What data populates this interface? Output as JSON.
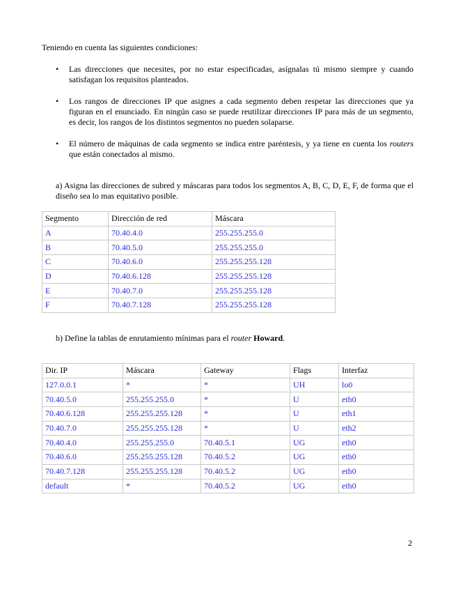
{
  "intro": "Teniendo en cuenta las siguientes condiciones:",
  "bullets": [
    "Las direcciones que necesites, por no estar especificadas, asígnalas tú mismo siempre y cuando satisfagan los requisitos planteados.",
    "Los rangos de direcciones IP que asignes a cada segmento deben respetar las direcciones que ya figuran en el enunciado. En ningún caso se puede reutilizar direcciones IP para más de un segmento, es decir, los rangos de los distintos segmentos no pueden solaparse.",
    {
      "italic": "routers",
      "pre": "El número de máquinas de cada segmento se indica entre paréntesis, y ya tiene en cuenta los ",
      "post": " que están conectados al mismo."
    }
  ],
  "question_a": "a) Asigna las direcciones de subred y máscaras para todos los segmentos A, B, C, D, E, F, de forma que el diseño sea lo mas equitativo posible.",
  "table_segments": {
    "headers": [
      "Segmento",
      "Dirección de red",
      "Máscara"
    ],
    "rows": [
      [
        "A",
        "70.40.4.0",
        "255.255.255.0"
      ],
      [
        "B",
        "70.40.5.0",
        "255.255.255.0"
      ],
      [
        "C",
        "70.40.6.0",
        "255.255.255.128"
      ],
      [
        "D",
        "70.40.6.128",
        "255.255.255.128"
      ],
      [
        "E",
        "70.40.7.0",
        "255.255.255.128"
      ],
      [
        "F",
        "70.40.7.128",
        "255.255.255.128"
      ]
    ]
  },
  "question_b": {
    "pre": "b) Define la tablas de enrutamiento mínimas para el ",
    "italic": "router",
    "bold": "Howard",
    "post": "."
  },
  "table_routing": {
    "headers": [
      "Dir. IP",
      "Máscara",
      "Gateway",
      "Flags",
      "Interfaz"
    ],
    "rows": [
      [
        "127.0.0.1",
        "*",
        "*",
        "UH",
        "lo0"
      ],
      [
        "70.40.5.0",
        "255.255.255.0",
        "*",
        "U",
        "eth0"
      ],
      [
        "70.40.6.128",
        "255.255.255.128",
        "*",
        "U",
        "eth1"
      ],
      [
        "70.40.7.0",
        "255.255.255.128",
        "*",
        "U",
        "eth2"
      ],
      [
        "70.40.4.0",
        "255.255.255.0",
        "70.40.5.1",
        "UG",
        "eth0"
      ],
      [
        "70.40.6.0",
        "255.255.255.128",
        "70.40.5.2",
        "UG",
        "eth0"
      ],
      [
        "70.40.7.128",
        "255.255.255.128",
        "70.40.5.2",
        "UG",
        "eth0"
      ],
      [
        "default",
        "*",
        "70.40.5.2",
        "UG",
        "eth0"
      ]
    ]
  },
  "page_number": "2",
  "colors": {
    "answer_text": "#2a2ad8",
    "border": "#c8c8c8"
  }
}
